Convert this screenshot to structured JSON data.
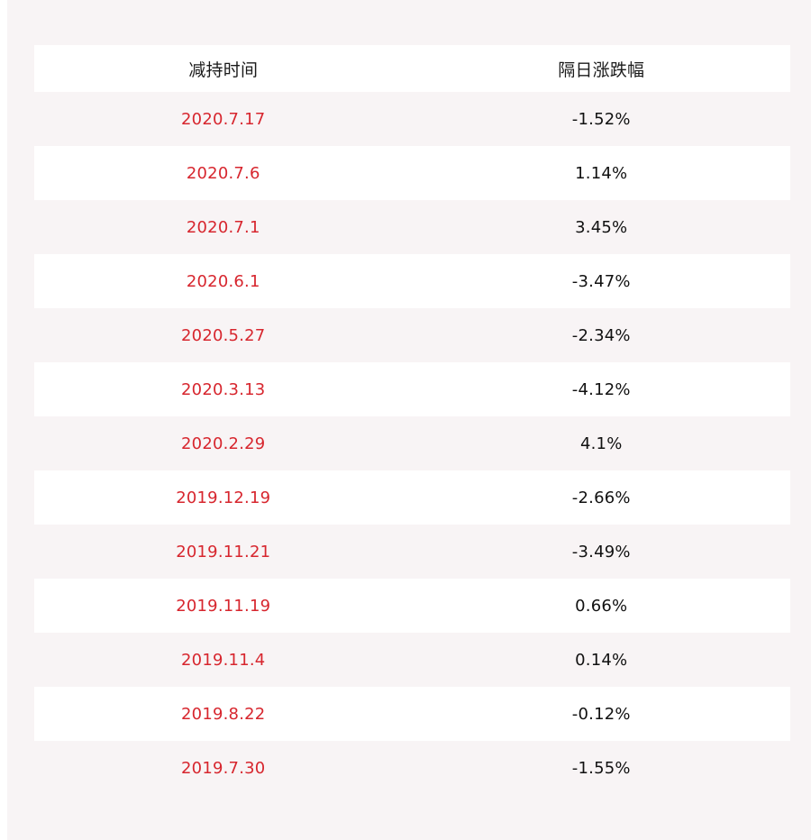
{
  "table": {
    "headers": [
      "减持时间",
      "隔日涨跌幅"
    ],
    "rows": [
      {
        "date": "2020.7.17",
        "change": "-1.52%"
      },
      {
        "date": "2020.7.6",
        "change": "1.14%"
      },
      {
        "date": "2020.7.1",
        "change": "3.45%"
      },
      {
        "date": "2020.6.1",
        "change": "-3.47%"
      },
      {
        "date": "2020.5.27",
        "change": "-2.34%"
      },
      {
        "date": "2020.3.13",
        "change": "-4.12%"
      },
      {
        "date": "2020.2.29",
        "change": "4.1%"
      },
      {
        "date": "2019.12.19",
        "change": "-2.66%"
      },
      {
        "date": "2019.11.21",
        "change": "-3.49%"
      },
      {
        "date": "2019.11.19",
        "change": "0.66%"
      },
      {
        "date": "2019.11.4",
        "change": "0.14%"
      },
      {
        "date": "2019.8.22",
        "change": "-0.12%"
      },
      {
        "date": "2019.7.30",
        "change": "-1.55%"
      }
    ]
  },
  "colors": {
    "date_text": "#d7262e",
    "value_text": "#111111",
    "panel_background": "#f8f4f5",
    "stripe_background": "#ffffff"
  }
}
